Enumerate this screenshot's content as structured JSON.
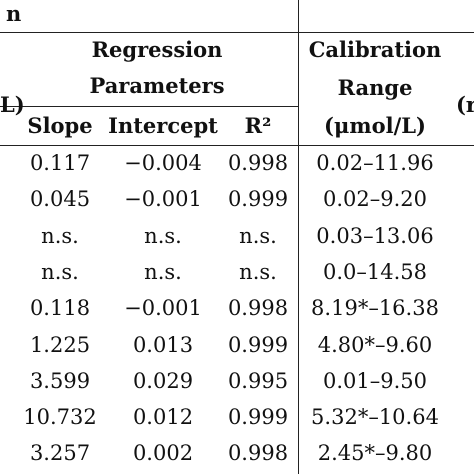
{
  "table": {
    "top_left_fragment": "n",
    "left_fragment": "L)",
    "right_fragment": "(r",
    "group_header": [
      "Regression",
      "Parameters"
    ],
    "calibration_header": [
      "Calibration",
      "Range",
      "(μmol/L)"
    ],
    "columns": [
      "Slope",
      "Intercept",
      "R²"
    ],
    "rows": [
      [
        "0.117",
        "−0.004",
        "0.998",
        "0.02–11.96"
      ],
      [
        "0.045",
        "−0.001",
        "0.999",
        "0.02–9.20"
      ],
      [
        "n.s.",
        "n.s.",
        "n.s.",
        "0.03–13.06"
      ],
      [
        "n.s.",
        "n.s.",
        "n.s.",
        "0.0–14.58"
      ],
      [
        "0.118",
        "−0.001",
        "0.998",
        "8.19*–16.38"
      ],
      [
        "1.225",
        "0.013",
        "0.999",
        "4.80*–9.60"
      ],
      [
        "3.599",
        "0.029",
        "0.995",
        "0.01–9.50"
      ],
      [
        "10.732",
        "0.012",
        "0.999",
        "5.32*–10.64"
      ],
      [
        "3.257",
        "0.002",
        "0.998",
        "2.45*–9.80"
      ]
    ]
  }
}
